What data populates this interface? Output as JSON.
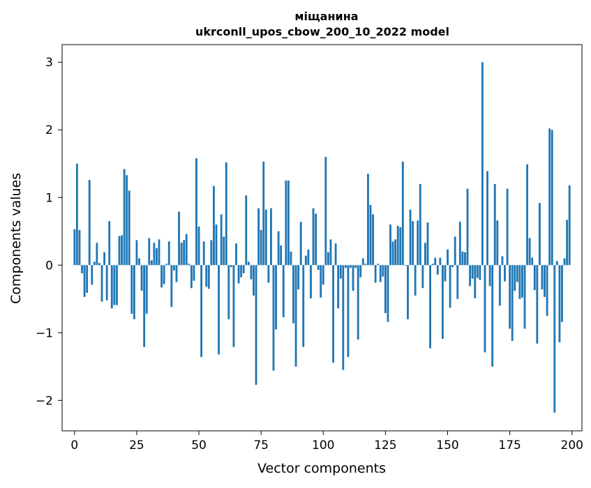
{
  "chart_data": {
    "type": "bar",
    "title": "міщанина",
    "subtitle": "ukrconll_upos_cbow_200_10_2022 model",
    "xlabel": "Vector components",
    "ylabel": "Components values",
    "xlim": [
      -5,
      204
    ],
    "ylim": [
      -2.45,
      3.26
    ],
    "xticks": [
      0,
      25,
      50,
      75,
      100,
      125,
      150,
      175,
      200
    ],
    "yticks": [
      -2,
      -1,
      0,
      1,
      2,
      3
    ],
    "ytick_labels": [
      "−2",
      "−1",
      "0",
      "1",
      "2",
      "3"
    ],
    "grid": false,
    "bar_color": "#1f77b4",
    "values": [
      0.53,
      1.5,
      0.52,
      -0.12,
      -0.47,
      -0.41,
      1.26,
      -0.29,
      0.05,
      0.33,
      0.03,
      -0.54,
      0.19,
      -0.52,
      0.65,
      -0.64,
      -0.59,
      -0.59,
      0.43,
      0.44,
      1.42,
      1.33,
      1.1,
      -0.72,
      -0.8,
      0.37,
      0.1,
      -0.38,
      -1.21,
      -0.72,
      0.4,
      0.07,
      0.33,
      0.25,
      0.38,
      -0.33,
      -0.28,
      0.02,
      0.35,
      -0.62,
      -0.08,
      -0.25,
      0.79,
      0.33,
      0.37,
      0.46,
      0.02,
      -0.34,
      -0.23,
      1.58,
      0.57,
      -1.36,
      0.35,
      -0.32,
      -0.35,
      0.37,
      1.17,
      0.6,
      -1.32,
      0.75,
      0.42,
      1.52,
      -0.8,
      -0.03,
      -1.21,
      0.32,
      -0.27,
      -0.18,
      -0.12,
      1.03,
      0.05,
      -0.21,
      -0.45,
      -1.77,
      0.84,
      0.52,
      1.53,
      0.82,
      -0.26,
      0.84,
      -1.56,
      -0.95,
      0.5,
      0.29,
      -0.77,
      1.25,
      1.25,
      0.2,
      -0.86,
      -1.5,
      -0.36,
      0.64,
      -1.21,
      0.14,
      0.23,
      -0.49,
      0.84,
      0.76,
      -0.07,
      -0.48,
      -0.29,
      1.6,
      0.19,
      0.38,
      -1.44,
      0.32,
      -0.64,
      -0.2,
      -1.55,
      -0.04,
      -1.36,
      -0.04,
      -0.38,
      -0.04,
      -1.1,
      -0.18,
      0.1,
      0.02,
      1.35,
      0.89,
      0.75,
      -0.26,
      0.02,
      -0.25,
      -0.17,
      -0.71,
      -0.84,
      0.6,
      0.35,
      0.38,
      0.58,
      0.56,
      1.53,
      -0.01,
      -0.8,
      0.82,
      0.65,
      -0.45,
      0.66,
      1.2,
      -0.34,
      0.33,
      0.63,
      -1.23,
      0.02,
      0.11,
      -0.14,
      0.11,
      -1.09,
      -0.24,
      0.23,
      -0.63,
      -0.03,
      0.42,
      -0.5,
      0.64,
      0.2,
      0.19,
      1.13,
      -0.31,
      -0.2,
      -0.49,
      -0.19,
      -0.22,
      3.0,
      -1.29,
      1.39,
      -0.31,
      -1.5,
      1.2,
      0.66,
      -0.6,
      0.13,
      -0.24,
      1.13,
      -0.94,
      -1.12,
      -0.38,
      -0.25,
      -0.5,
      -0.48,
      -0.94,
      1.49,
      0.4,
      0.11,
      -0.37,
      -1.16,
      0.92,
      -0.36,
      -0.47,
      -0.75,
      2.02,
      2.0,
      -2.18,
      0.06,
      -1.14,
      -0.84,
      0.1,
      0.67,
      1.18
    ]
  }
}
